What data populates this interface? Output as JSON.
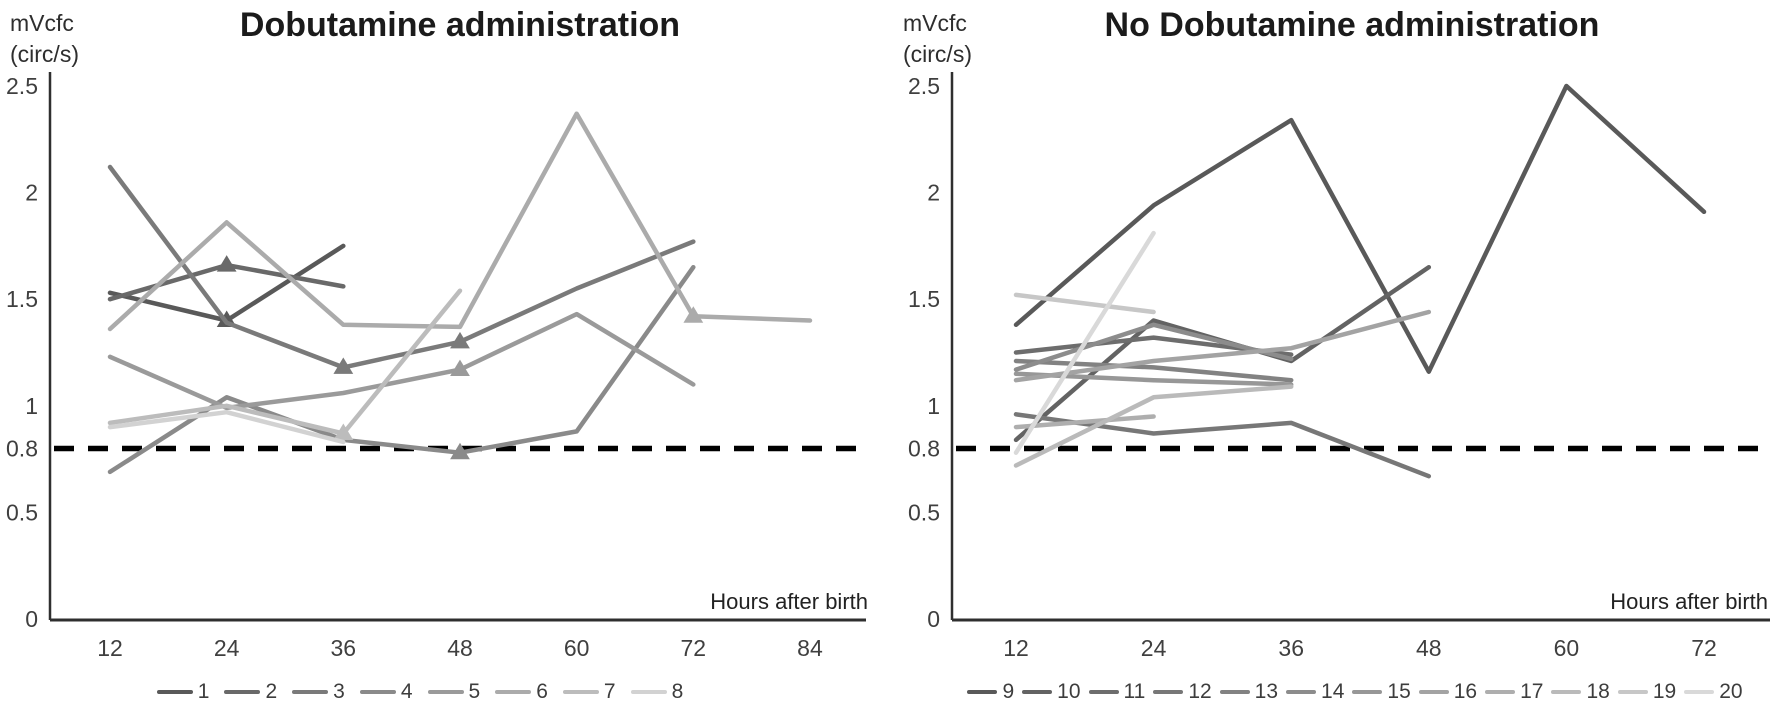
{
  "figure": {
    "ylabel_line1": "mVcfc",
    "ylabel_line2": "(circ/s)",
    "xlabel": "Hours after birth",
    "reference_line_color": "#000000",
    "axis_color": "#2f2f2f",
    "tick_label_color": "#3f3f3f"
  },
  "chart_data": [
    {
      "type": "line",
      "title": "Dobutamine administration",
      "xlabel": "Hours after birth",
      "ylabel": "mVcfc (circ/s)",
      "x_ticks": [
        12,
        24,
        36,
        48,
        60,
        72,
        84
      ],
      "y_ticks": [
        2.5,
        2,
        1.5,
        1,
        0.8,
        0.5,
        0
      ],
      "ylim": [
        0,
        2.5
      ],
      "reference_line_y": 0.8,
      "reference_line_style": "dashed",
      "grid": false,
      "legend_position": "bottom",
      "marker_note": "triangle markers on selected points",
      "series": [
        {
          "name": "1",
          "color": "#595959",
          "x": [
            12,
            24,
            36
          ],
          "values": [
            1.53,
            1.4,
            1.75
          ],
          "markers": [
            [
              24,
              1.4
            ]
          ]
        },
        {
          "name": "2",
          "color": "#696969",
          "x": [
            12,
            24,
            36
          ],
          "values": [
            1.5,
            1.66,
            1.56
          ],
          "markers": [
            [
              24,
              1.66
            ]
          ]
        },
        {
          "name": "3",
          "color": "#7a7a7a",
          "x": [
            12,
            24,
            36,
            48,
            60,
            72
          ],
          "values": [
            2.12,
            1.39,
            1.18,
            1.3,
            1.55,
            1.77
          ],
          "markers": [
            [
              36,
              1.18
            ],
            [
              48,
              1.3
            ]
          ]
        },
        {
          "name": "4",
          "color": "#8a8a8a",
          "x": [
            12,
            24,
            36,
            48,
            60,
            72
          ],
          "values": [
            0.69,
            1.04,
            0.84,
            0.78,
            0.88,
            1.65
          ],
          "markers": [
            [
              48,
              0.78
            ]
          ]
        },
        {
          "name": "5",
          "color": "#9a9a9a",
          "x": [
            12,
            24,
            36,
            48,
            60,
            72
          ],
          "values": [
            1.23,
            0.99,
            1.06,
            1.17,
            1.43,
            1.1
          ],
          "markers": [
            [
              48,
              1.17
            ]
          ]
        },
        {
          "name": "6",
          "color": "#ababab",
          "x": [
            12,
            24,
            36,
            48,
            60,
            72,
            84
          ],
          "values": [
            1.36,
            1.86,
            1.38,
            1.37,
            2.37,
            1.42,
            1.4
          ],
          "markers": [
            [
              72,
              1.42
            ]
          ]
        },
        {
          "name": "7",
          "color": "#bcbcbc",
          "x": [
            12,
            24,
            36,
            48
          ],
          "values": [
            0.92,
            1.0,
            0.87,
            1.54
          ],
          "markers": [
            [
              36,
              0.87
            ]
          ]
        },
        {
          "name": "8",
          "color": "#d2d2d2",
          "x": [
            12,
            24,
            36
          ],
          "values": [
            0.9,
            0.97,
            0.83
          ],
          "markers": []
        }
      ]
    },
    {
      "type": "line",
      "title": "No Dobutamine administration",
      "xlabel": "Hours after birth",
      "ylabel": "mVcfc (circ/s)",
      "x_ticks": [
        12,
        24,
        36,
        48,
        60,
        72
      ],
      "y_ticks": [
        2.5,
        2,
        1.5,
        1,
        0.8,
        0.5,
        0
      ],
      "ylim": [
        0,
        2.5
      ],
      "reference_line_y": 0.8,
      "reference_line_style": "dashed",
      "grid": false,
      "legend_position": "bottom",
      "series": [
        {
          "name": "9",
          "color": "#595959",
          "x": [
            12,
            24,
            36,
            48,
            60,
            72
          ],
          "values": [
            1.38,
            1.94,
            2.34,
            1.16,
            2.5,
            1.91
          ],
          "markers": []
        },
        {
          "name": "10",
          "color": "#636363",
          "x": [
            12,
            24,
            36,
            48
          ],
          "values": [
            0.84,
            1.4,
            1.21,
            1.65
          ],
          "markers": []
        },
        {
          "name": "11",
          "color": "#6d6d6d",
          "x": [
            12,
            24,
            36
          ],
          "values": [
            1.25,
            1.32,
            1.24
          ],
          "markers": []
        },
        {
          "name": "12",
          "color": "#777777",
          "x": [
            12,
            24,
            36,
            48
          ],
          "values": [
            0.96,
            0.87,
            0.92,
            0.67
          ],
          "markers": []
        },
        {
          "name": "13",
          "color": "#828282",
          "x": [
            12,
            24,
            36
          ],
          "values": [
            1.21,
            1.18,
            1.12
          ],
          "markers": []
        },
        {
          "name": "14",
          "color": "#8c8c8c",
          "x": [
            12,
            24,
            36
          ],
          "values": [
            1.17,
            1.38,
            1.22
          ],
          "markers": []
        },
        {
          "name": "15",
          "color": "#979797",
          "x": [
            12,
            24,
            36
          ],
          "values": [
            1.15,
            1.12,
            1.1
          ],
          "markers": []
        },
        {
          "name": "16",
          "color": "#a3a3a3",
          "x": [
            12,
            24,
            36,
            48
          ],
          "values": [
            1.12,
            1.21,
            1.27,
            1.44
          ],
          "markers": []
        },
        {
          "name": "17",
          "color": "#aeaeae",
          "x": [
            12,
            24
          ],
          "values": [
            0.9,
            0.95
          ],
          "markers": []
        },
        {
          "name": "18",
          "color": "#bababa",
          "x": [
            12,
            24,
            36
          ],
          "values": [
            0.72,
            1.04,
            1.09
          ],
          "markers": []
        },
        {
          "name": "19",
          "color": "#c7c7c7",
          "x": [
            12,
            24
          ],
          "values": [
            1.52,
            1.44
          ],
          "markers": []
        },
        {
          "name": "20",
          "color": "#d9d9d9",
          "x": [
            12,
            24
          ],
          "values": [
            0.78,
            1.81
          ],
          "markers": []
        }
      ]
    }
  ]
}
